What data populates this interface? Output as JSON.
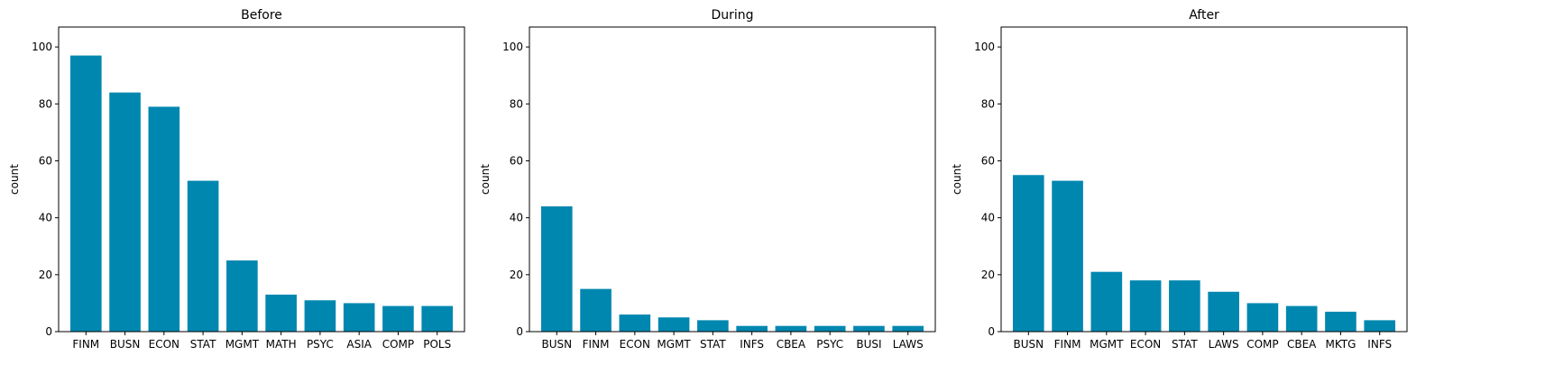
{
  "chart_data": [
    {
      "type": "bar",
      "title": "Before",
      "xlabel": "",
      "ylabel": "count",
      "ylim": [
        0,
        107
      ],
      "yticks": [
        0,
        20,
        40,
        60,
        80,
        100
      ],
      "categories": [
        "FINM",
        "BUSN",
        "ECON",
        "STAT",
        "MGMT",
        "MATH",
        "PSYC",
        "ASIA",
        "COMP",
        "POLS"
      ],
      "values": [
        97,
        84,
        79,
        53,
        25,
        13,
        11,
        10,
        9,
        9
      ],
      "color": "#0087b0",
      "grid": false
    },
    {
      "type": "bar",
      "title": "During",
      "xlabel": "",
      "ylabel": "count",
      "ylim": [
        0,
        107
      ],
      "yticks": [
        0,
        20,
        40,
        60,
        80,
        100
      ],
      "categories": [
        "BUSN",
        "FINM",
        "ECON",
        "MGMT",
        "STAT",
        "INFS",
        "CBEA",
        "PSYC",
        "BUSI",
        "LAWS"
      ],
      "values": [
        44,
        15,
        6,
        5,
        4,
        2,
        2,
        2,
        2,
        2
      ],
      "color": "#0087b0",
      "grid": false
    },
    {
      "type": "bar",
      "title": "After",
      "xlabel": "",
      "ylabel": "count",
      "ylim": [
        0,
        107
      ],
      "yticks": [
        0,
        20,
        40,
        60,
        80,
        100
      ],
      "categories": [
        "BUSN",
        "FINM",
        "MGMT",
        "ECON",
        "STAT",
        "LAWS",
        "COMP",
        "CBEA",
        "MKTG",
        "INFS"
      ],
      "values": [
        55,
        53,
        21,
        18,
        18,
        14,
        10,
        9,
        7,
        4
      ],
      "color": "#0087b0",
      "grid": false
    }
  ]
}
